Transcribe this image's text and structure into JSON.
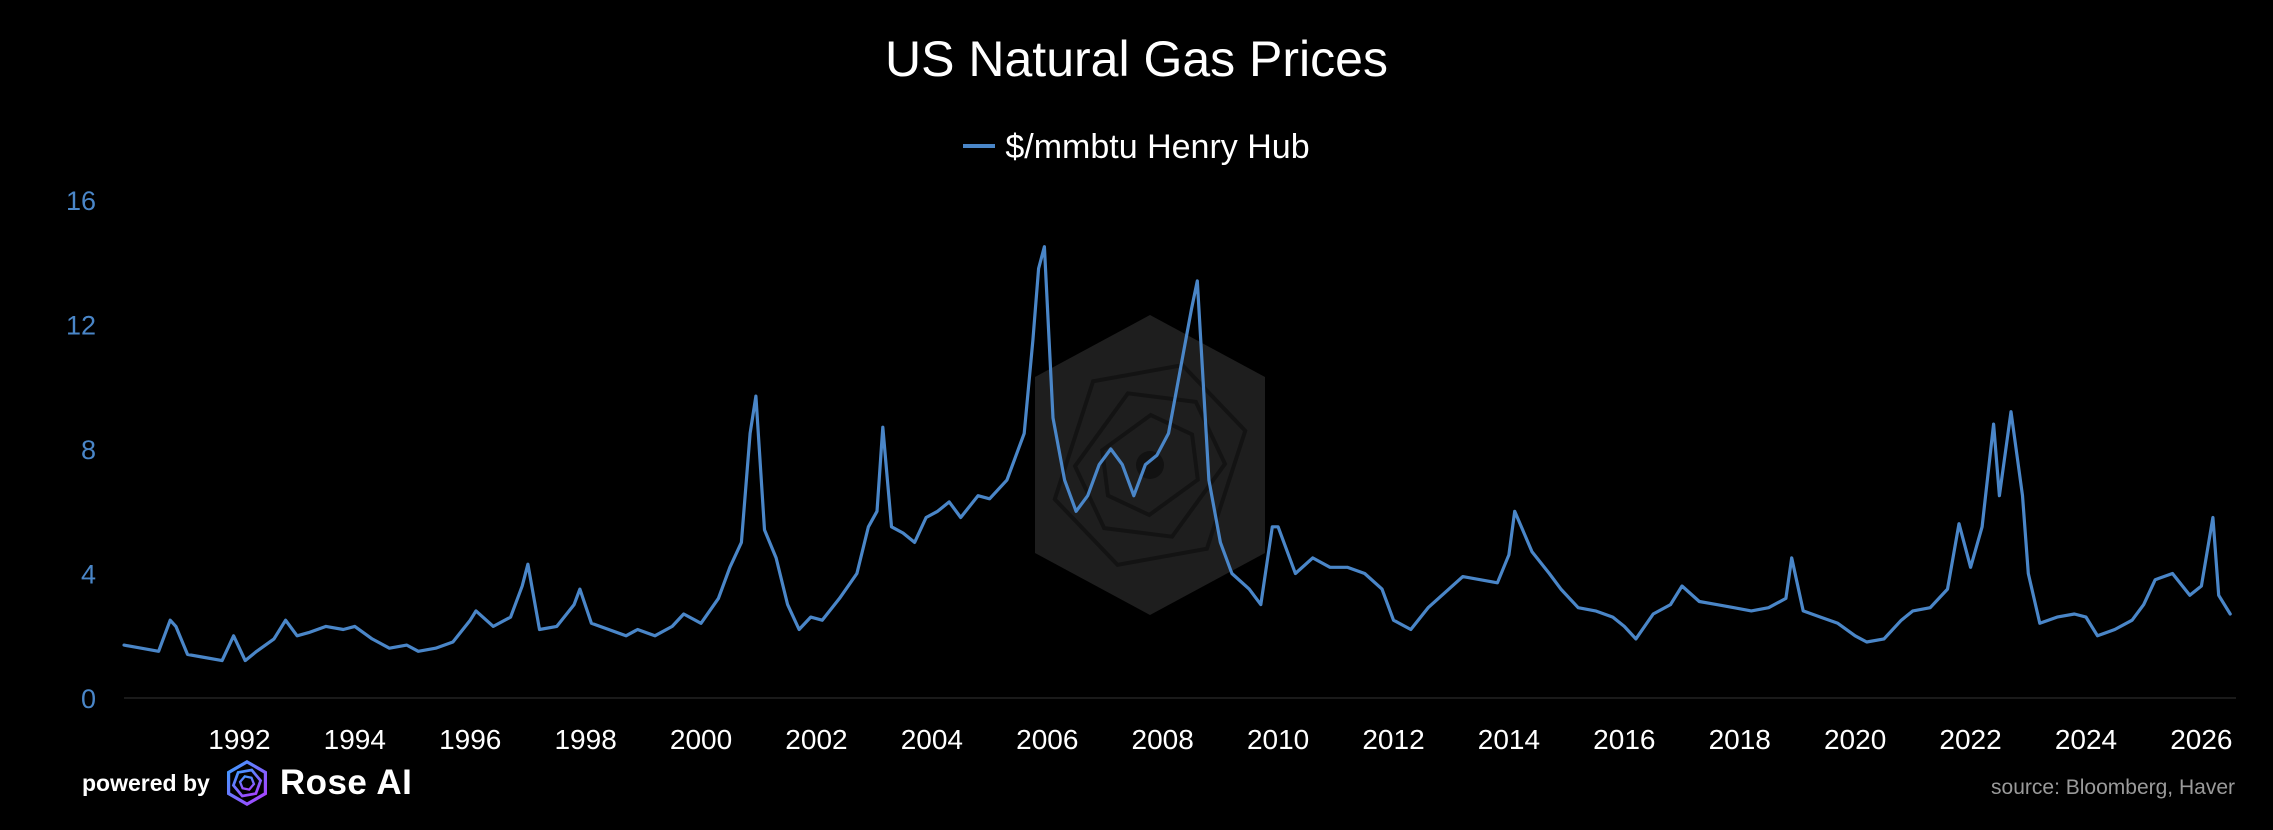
{
  "title": "US Natural Gas Prices",
  "series_label": "$/mmbtu Henry Hub",
  "source": "source: Bloomberg, Haver",
  "branding": {
    "powered_by": "powered by",
    "brand": "Rose AI",
    "logo_icon": "rose-ai-logo-icon"
  },
  "colors": {
    "line": "#4a86c8",
    "background": "#000000",
    "axis_text": "#4a86c8",
    "watermark": "#1e1e1e"
  },
  "chart_data": {
    "type": "line",
    "title": "US Natural Gas Prices",
    "xlabel": "",
    "ylabel": "",
    "legend": "top-center",
    "grid": false,
    "xlim": [
      1990.0,
      2026.6
    ],
    "ylim": [
      0,
      16
    ],
    "yticks": [
      0,
      4,
      8,
      12,
      16
    ],
    "xticks": [
      1992,
      1994,
      1996,
      1998,
      2000,
      2002,
      2004,
      2006,
      2008,
      2010,
      2012,
      2014,
      2016,
      2018,
      2020,
      2022,
      2024,
      2026
    ],
    "series": [
      {
        "name": "$/mmbtu Henry Hub",
        "x": [
          1990.0,
          1990.3,
          1990.6,
          1990.8,
          1990.9,
          1991.1,
          1991.4,
          1991.7,
          1991.9,
          1992.1,
          1992.3,
          1992.6,
          1992.8,
          1993.0,
          1993.2,
          1993.5,
          1993.8,
          1994.0,
          1994.3,
          1994.6,
          1994.9,
          1995.1,
          1995.4,
          1995.7,
          1996.0,
          1996.1,
          1996.4,
          1996.7,
          1996.9,
          1997.0,
          1997.2,
          1997.5,
          1997.8,
          1997.9,
          1998.1,
          1998.4,
          1998.7,
          1998.9,
          1999.2,
          1999.5,
          1999.7,
          2000.0,
          2000.3,
          2000.5,
          2000.7,
          2000.85,
          2000.95,
          2001.1,
          2001.3,
          2001.5,
          2001.7,
          2001.9,
          2002.1,
          2002.4,
          2002.7,
          2002.9,
          2003.05,
          2003.15,
          2003.3,
          2003.5,
          2003.7,
          2003.9,
          2004.1,
          2004.3,
          2004.5,
          2004.8,
          2005.0,
          2005.3,
          2005.6,
          2005.75,
          2005.85,
          2005.95,
          2006.1,
          2006.3,
          2006.5,
          2006.7,
          2006.9,
          2007.1,
          2007.3,
          2007.5,
          2007.7,
          2007.9,
          2008.1,
          2008.3,
          2008.5,
          2008.6,
          2008.8,
          2009.0,
          2009.2,
          2009.5,
          2009.7,
          2009.9,
          2010.0,
          2010.3,
          2010.6,
          2010.9,
          2011.2,
          2011.5,
          2011.8,
          2012.0,
          2012.3,
          2012.6,
          2012.9,
          2013.2,
          2013.5,
          2013.8,
          2014.0,
          2014.1,
          2014.4,
          2014.7,
          2014.9,
          2015.2,
          2015.5,
          2015.8,
          2016.0,
          2016.2,
          2016.5,
          2016.8,
          2017.0,
          2017.3,
          2017.6,
          2017.9,
          2018.2,
          2018.5,
          2018.8,
          2018.9,
          2019.1,
          2019.4,
          2019.7,
          2020.0,
          2020.2,
          2020.5,
          2020.8,
          2021.0,
          2021.3,
          2021.6,
          2021.8,
          2022.0,
          2022.2,
          2022.4,
          2022.5,
          2022.7,
          2022.9,
          2023.0,
          2023.2,
          2023.5,
          2023.8,
          2024.0,
          2024.2,
          2024.5,
          2024.8,
          2025.0,
          2025.2,
          2025.5,
          2025.8,
          2026.0,
          2026.2,
          2026.3,
          2026.5
        ],
        "values": [
          1.7,
          1.6,
          1.5,
          2.5,
          2.3,
          1.4,
          1.3,
          1.2,
          2.0,
          1.2,
          1.5,
          1.9,
          2.5,
          2.0,
          2.1,
          2.3,
          2.2,
          2.3,
          1.9,
          1.6,
          1.7,
          1.5,
          1.6,
          1.8,
          2.5,
          2.8,
          2.3,
          2.6,
          3.6,
          4.3,
          2.2,
          2.3,
          3.0,
          3.5,
          2.4,
          2.2,
          2.0,
          2.2,
          2.0,
          2.3,
          2.7,
          2.4,
          3.2,
          4.2,
          5.0,
          8.5,
          9.7,
          5.4,
          4.5,
          3.0,
          2.2,
          2.6,
          2.5,
          3.2,
          4.0,
          5.5,
          6.0,
          8.7,
          5.5,
          5.3,
          5.0,
          5.8,
          6.0,
          6.3,
          5.8,
          6.5,
          6.4,
          7.0,
          8.5,
          11.5,
          13.8,
          14.5,
          9.0,
          7.0,
          6.0,
          6.5,
          7.5,
          8.0,
          7.5,
          6.5,
          7.5,
          7.8,
          8.5,
          10.5,
          12.5,
          13.4,
          7.0,
          5.0,
          4.0,
          3.5,
          3.0,
          5.5,
          5.5,
          4.0,
          4.5,
          4.2,
          4.2,
          4.0,
          3.5,
          2.5,
          2.2,
          2.9,
          3.4,
          3.9,
          3.8,
          3.7,
          4.6,
          6.0,
          4.7,
          4.0,
          3.5,
          2.9,
          2.8,
          2.6,
          2.3,
          1.9,
          2.7,
          3.0,
          3.6,
          3.1,
          3.0,
          2.9,
          2.8,
          2.9,
          3.2,
          4.5,
          2.8,
          2.6,
          2.4,
          2.0,
          1.8,
          1.9,
          2.5,
          2.8,
          2.9,
          3.5,
          5.6,
          4.2,
          5.5,
          8.8,
          6.5,
          9.2,
          6.5,
          4.0,
          2.4,
          2.6,
          2.7,
          2.6,
          2.0,
          2.2,
          2.5,
          3.0,
          3.8,
          4.0,
          3.3,
          3.6,
          5.8,
          3.3,
          2.7
        ]
      }
    ]
  }
}
